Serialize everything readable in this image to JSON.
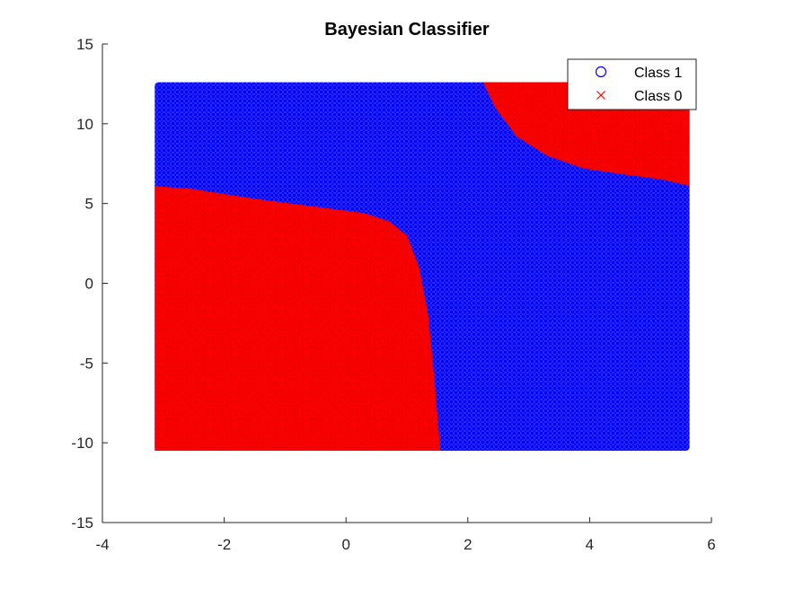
{
  "chart_data": {
    "type": "scatter",
    "title": "Bayesian Classifier",
    "xlabel": "",
    "ylabel": "",
    "xlim": [
      -4,
      6
    ],
    "ylim": [
      -15,
      15
    ],
    "xticks": [
      "-4",
      "-2",
      "0",
      "2",
      "4",
      "6"
    ],
    "yticks": [
      "15",
      "10",
      "5",
      "0",
      "-5",
      "-10",
      "-15"
    ],
    "grid": false,
    "legend_position": "top-right",
    "grid_region": {
      "x": [
        -3.14,
        5.64
      ],
      "y": [
        -10.5,
        12.6
      ]
    },
    "series": [
      {
        "name": "Class 1",
        "marker": "circle",
        "color": "#0000ff",
        "region_desc": "complement of Class 0 within the grid region"
      },
      {
        "name": "Class 0",
        "marker": "x",
        "color": "#ff0000",
        "lower_left_boundary": [
          [
            -3.14,
            6.1
          ],
          [
            -2.5,
            5.9
          ],
          [
            -1.5,
            5.3
          ],
          [
            -0.5,
            4.8
          ],
          [
            0.3,
            4.4
          ],
          [
            0.7,
            3.9
          ],
          [
            1.0,
            3.0
          ],
          [
            1.2,
            1.0
          ],
          [
            1.35,
            -2.0
          ],
          [
            1.45,
            -6.0
          ],
          [
            1.55,
            -10.5
          ]
        ],
        "upper_right_boundary": [
          [
            2.25,
            12.6
          ],
          [
            2.45,
            11.0
          ],
          [
            2.8,
            9.2
          ],
          [
            3.3,
            8.0
          ],
          [
            3.9,
            7.2
          ],
          [
            4.6,
            6.8
          ],
          [
            5.2,
            6.5
          ],
          [
            5.64,
            6.1
          ]
        ]
      }
    ]
  }
}
